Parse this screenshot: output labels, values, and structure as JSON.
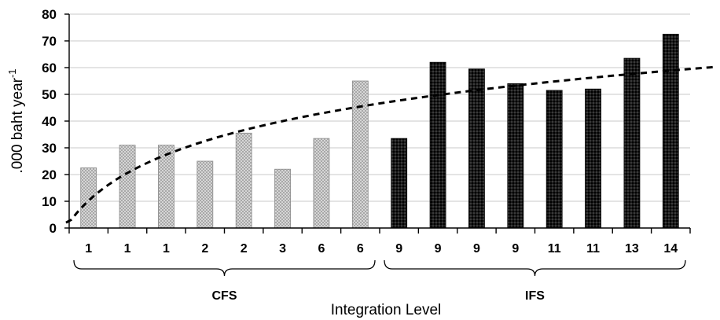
{
  "chart_data": {
    "type": "bar",
    "title": "",
    "xlabel": "Integration Level",
    "ylabel": ".000 baht year",
    "ylabel_superscript": "-1",
    "ylim": [
      0,
      80
    ],
    "yticks": [
      0,
      10,
      20,
      30,
      40,
      50,
      60,
      70,
      80
    ],
    "grid": true,
    "categories": [
      "1",
      "1",
      "1",
      "2",
      "2",
      "3",
      "6",
      "6",
      "9",
      "9",
      "9",
      "9",
      "11",
      "11",
      "13",
      "14"
    ],
    "values": [
      22.5,
      31,
      31,
      25,
      35.5,
      22,
      33.5,
      55,
      33.5,
      62,
      59.5,
      54,
      51.5,
      52,
      63.5,
      72.5
    ],
    "groups": [
      {
        "label": "CFS",
        "start": 0,
        "end": 7,
        "color": "#c9c9c9"
      },
      {
        "label": "IFS",
        "start": 8,
        "end": 15,
        "color": "#141414"
      }
    ],
    "trendline": {
      "type": "logarithmic",
      "style": "dashed",
      "color": "#000000",
      "start": 2,
      "end": 59.5
    }
  }
}
